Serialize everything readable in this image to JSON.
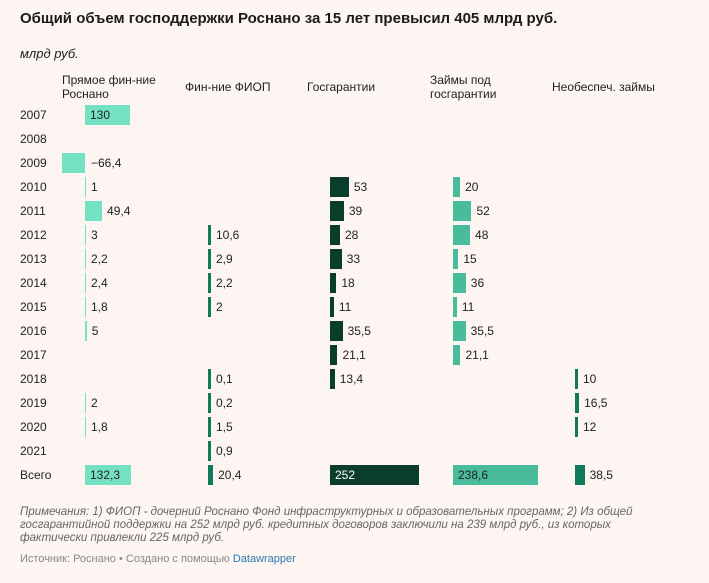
{
  "header": {
    "title": "Общий объем господдержки Роснано за 15 лет превысил 405 млрд руб.",
    "subtitle": "млрд руб."
  },
  "colors": {
    "col0": "#74e2c2",
    "col1": "#117a5a",
    "col2": "#0b3d2c",
    "col3": "#49bd9b",
    "col4": "#117a5a",
    "background": "#fdf5f1"
  },
  "chart_data": {
    "type": "table",
    "columns": [
      {
        "name": "Прямое фин-ние Роснано",
        "header_lines": [
          "Прямое фин-ние",
          "Роснано"
        ]
      },
      {
        "name": "Фин-ние ФИОП",
        "header_lines": [
          "Фин-ние ФИОП"
        ]
      },
      {
        "name": "Госгарантии",
        "header_lines": [
          "Госгарантии"
        ]
      },
      {
        "name": "Займы под госгарантии",
        "header_lines": [
          "Займы под",
          "госгарантии"
        ]
      },
      {
        "name": "Необеспеч. займы",
        "header_lines": [
          "Необеспеч. займы"
        ]
      }
    ],
    "rows": [
      {
        "label": "2007",
        "values": [
          130,
          null,
          null,
          null,
          null
        ],
        "labels": [
          "130",
          "",
          "",
          "",
          ""
        ]
      },
      {
        "label": "2008",
        "values": [
          null,
          null,
          null,
          null,
          null
        ],
        "labels": [
          "",
          "",
          "",
          "",
          ""
        ]
      },
      {
        "label": "2009",
        "values": [
          -66.4,
          null,
          null,
          null,
          null
        ],
        "labels": [
          "−66,4",
          "",
          "",
          "",
          ""
        ]
      },
      {
        "label": "2010",
        "values": [
          1,
          null,
          53,
          20,
          null
        ],
        "labels": [
          "1",
          "",
          "53",
          "20",
          ""
        ]
      },
      {
        "label": "2011",
        "values": [
          49.4,
          null,
          39,
          52,
          null
        ],
        "labels": [
          "49,4",
          "",
          "39",
          "52",
          ""
        ]
      },
      {
        "label": "2012",
        "values": [
          3,
          10.6,
          28,
          48,
          null
        ],
        "labels": [
          "3",
          "10,6",
          "28",
          "48",
          ""
        ]
      },
      {
        "label": "2013",
        "values": [
          2.2,
          2.9,
          33,
          15,
          null
        ],
        "labels": [
          "2,2",
          "2,9",
          "33",
          "15",
          ""
        ]
      },
      {
        "label": "2014",
        "values": [
          2.4,
          2.2,
          18,
          36,
          null
        ],
        "labels": [
          "2,4",
          "2,2",
          "18",
          "36",
          ""
        ]
      },
      {
        "label": "2015",
        "values": [
          1.8,
          2,
          11,
          11,
          null
        ],
        "labels": [
          "1,8",
          "2",
          "11",
          "11",
          ""
        ]
      },
      {
        "label": "2016",
        "values": [
          5,
          null,
          35.5,
          35.5,
          null
        ],
        "labels": [
          "5",
          "",
          "35,5",
          "35,5",
          ""
        ]
      },
      {
        "label": "2017",
        "values": [
          null,
          null,
          21.1,
          21.1,
          null
        ],
        "labels": [
          "",
          "",
          "21,1",
          "21,1",
          ""
        ]
      },
      {
        "label": "2018",
        "values": [
          null,
          0.1,
          13.4,
          null,
          10
        ],
        "labels": [
          "",
          "0,1",
          "13,4",
          "",
          "10"
        ]
      },
      {
        "label": "2019",
        "values": [
          2,
          0.2,
          null,
          null,
          16.5
        ],
        "labels": [
          "2",
          "0,2",
          "",
          "",
          "16,5"
        ]
      },
      {
        "label": "2020",
        "values": [
          1.8,
          1.5,
          null,
          null,
          12
        ],
        "labels": [
          "1,8",
          "1,5",
          "",
          "",
          "12"
        ]
      },
      {
        "label": "2021",
        "values": [
          null,
          0.9,
          null,
          null,
          null
        ],
        "labels": [
          "",
          "0,9",
          "",
          "",
          ""
        ]
      },
      {
        "label": "Всего",
        "values": [
          132.3,
          20.4,
          252,
          238.6,
          38.5
        ],
        "labels": [
          "132,3",
          "20,4",
          "252",
          "238,6",
          "38,5"
        ]
      }
    ]
  },
  "footer": {
    "notes": "Примечания: 1) ФИОП - дочерний Роснано Фонд инфраструктурных и образовательных программ; 2) Из общей госгарантийной поддержки на 252 млрд руб. кредитных договоров заключили на 239 млрд руб., из которых фактически привлекли 225 млрд руб.",
    "source_prefix": "Источник: Роснано • Создано с помощью ",
    "source_link": "Datawrapper"
  }
}
